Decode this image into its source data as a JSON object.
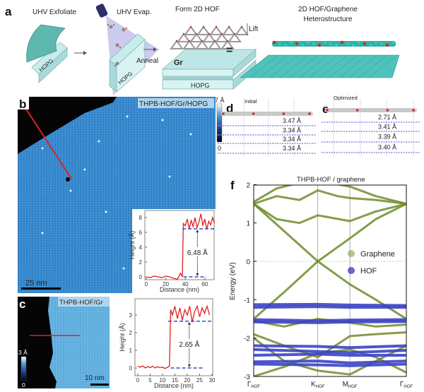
{
  "panel_a": {
    "label": "a",
    "step1": "UHV Exfoliate",
    "step2": "UHV Evap.",
    "step3": "Form 2D HOF",
    "step4_line1": "2D HOF/Graphene",
    "step4_line2": "Heterostructure",
    "anneal": "Anneal",
    "lift": "Lift",
    "gr": "Gr",
    "hopg": "HOPG",
    "equals": "="
  },
  "panel_b": {
    "label": "b",
    "title": "THPB-HOF/Gr/HOPG",
    "colorbar_max": "7 Å",
    "colorbar_min": "0",
    "scale_bar": "25 nm"
  },
  "panel_c": {
    "label": "c",
    "title": "THPB-HOF/Gr",
    "colorbar_max": "3 Å",
    "colorbar_min": "0",
    "scale_bar": "10 nm"
  },
  "panel_d": {
    "label": "d",
    "title": "Initial",
    "spacings": [
      "3.47 Å",
      "3.34 Å",
      "3.34 Å",
      "3.34 Å"
    ]
  },
  "panel_e": {
    "label": "e",
    "title": "Optimized",
    "spacings": [
      "2.71 Å",
      "3.41 Å",
      "3.39 Å",
      "3.40 Å"
    ]
  },
  "panel_f": {
    "label": "f"
  },
  "colors": {
    "graphene": "#6e8c2a",
    "hof": "#3b44c4",
    "profile": "#e02020",
    "level": "#3a4fc0",
    "stm_blue": "#3a8fd0"
  },
  "chart_data": [
    {
      "type": "line",
      "panel": "b-inset",
      "xlabel": "Distance (nm)",
      "ylabel": "Height (Å)",
      "xlim": [
        0,
        70
      ],
      "ylim": [
        -0.5,
        9
      ],
      "xticks": [
        0,
        20,
        40,
        60
      ],
      "yticks": [
        0,
        2,
        4,
        6,
        8
      ],
      "annotation": "6.48 Å",
      "levels": [
        0,
        6.48
      ],
      "points": [
        [
          0,
          0
        ],
        [
          4,
          -0.1
        ],
        [
          8,
          0.1
        ],
        [
          12,
          0
        ],
        [
          16,
          -0.1
        ],
        [
          20,
          0.1
        ],
        [
          24,
          0
        ],
        [
          28,
          -0.2
        ],
        [
          32,
          -0.3
        ],
        [
          35,
          0.5
        ],
        [
          37,
          0
        ],
        [
          38,
          7.2
        ],
        [
          40,
          6.9
        ],
        [
          42,
          7.8
        ],
        [
          44,
          6.5
        ],
        [
          46,
          7.6
        ],
        [
          48,
          6.8
        ],
        [
          50,
          8.0
        ],
        [
          52,
          6.6
        ],
        [
          54,
          7.4
        ],
        [
          56,
          8.5
        ],
        [
          58,
          6.9
        ],
        [
          60,
          7.8
        ],
        [
          62,
          6.4
        ],
        [
          64,
          7.5
        ],
        [
          66,
          7.0
        ],
        [
          68,
          8.0
        ],
        [
          70,
          7.2
        ]
      ]
    },
    {
      "type": "line",
      "panel": "c-profile",
      "xlabel": "Distance (nm)",
      "ylabel": "Height (Å)",
      "xlim": [
        0,
        30
      ],
      "ylim": [
        -0.4,
        3.9
      ],
      "xticks": [
        0,
        5,
        10,
        15,
        20,
        25,
        30
      ],
      "yticks": [
        0,
        1,
        2,
        3
      ],
      "annotation": "2.65 Å",
      "levels": [
        0,
        2.65
      ],
      "points": [
        [
          0,
          0.1
        ],
        [
          1,
          0.05
        ],
        [
          2,
          0.12
        ],
        [
          3,
          0
        ],
        [
          4,
          0.08
        ],
        [
          5,
          0.02
        ],
        [
          6,
          0.1
        ],
        [
          7,
          0
        ],
        [
          8,
          0.07
        ],
        [
          9,
          0.02
        ],
        [
          10,
          0.05
        ],
        [
          11,
          -0.03
        ],
        [
          12,
          0.04
        ],
        [
          12.8,
          0.1
        ],
        [
          13.3,
          3.3
        ],
        [
          14,
          3.0
        ],
        [
          15,
          3.5
        ],
        [
          16,
          2.8
        ],
        [
          17,
          3.4
        ],
        [
          18,
          2.7
        ],
        [
          19,
          3.3
        ],
        [
          20,
          3.0
        ],
        [
          21,
          3.5
        ],
        [
          22,
          2.6
        ],
        [
          23,
          3.2
        ],
        [
          24,
          3.5
        ],
        [
          25,
          2.9
        ],
        [
          26,
          3.4
        ],
        [
          27,
          3.1
        ],
        [
          28,
          3.5
        ],
        [
          29,
          3.0
        ]
      ]
    },
    {
      "type": "line",
      "panel": "f",
      "title": "THPB-HOF / graphene",
      "ylabel": "Energy (eV)",
      "ylim": [
        -3,
        2
      ],
      "yticks": [
        2,
        1,
        0,
        -1,
        -2,
        -3
      ],
      "fermi_level": 0,
      "kpoints": [
        {
          "name": "Γ",
          "sub": "HOF",
          "k": 0
        },
        {
          "name": "K",
          "sub": "HOF",
          "k": 0.42
        },
        {
          "name": "M",
          "sub": "HOF",
          "k": 0.63
        },
        {
          "name": "Γ",
          "sub": "HOF",
          "k": 1
        }
      ],
      "series": [
        {
          "name": "Graphene",
          "bands": [
            [
              [
                0,
                1.5
              ],
              [
                0.42,
                0
              ],
              [
                0.63,
                0.6
              ],
              [
                0.8,
                1.1
              ],
              [
                1,
                1.5
              ]
            ],
            [
              [
                0,
                -1.5
              ],
              [
                0.2,
                -0.8
              ],
              [
                0.42,
                0
              ],
              [
                0.63,
                -0.6
              ],
              [
                0.8,
                -1.0
              ],
              [
                1,
                -1.5
              ]
            ],
            [
              [
                0,
                1.5
              ],
              [
                0.15,
                1.1
              ],
              [
                0.3,
                1.0
              ],
              [
                0.42,
                1.2
              ],
              [
                0.63,
                1.05
              ],
              [
                0.8,
                1.3
              ],
              [
                1,
                1.5
              ]
            ],
            [
              [
                0,
                1.5
              ],
              [
                0.15,
                1.7
              ],
              [
                0.3,
                1.6
              ],
              [
                0.42,
                1.85
              ],
              [
                0.55,
                1.7
              ],
              [
                0.63,
                1.65
              ],
              [
                0.8,
                1.6
              ],
              [
                1,
                1.5
              ]
            ],
            [
              [
                0,
                1.55
              ],
              [
                0.15,
                1.9
              ],
              [
                0.3,
                2.05
              ],
              [
                0.42,
                2.1
              ],
              [
                0.63,
                1.95
              ],
              [
                0.8,
                1.7
              ],
              [
                1,
                1.5
              ]
            ],
            [
              [
                0,
                -1.9
              ],
              [
                0.2,
                -2.2
              ],
              [
                0.42,
                -2.5
              ],
              [
                0.63,
                -1.95
              ],
              [
                0.8,
                -1.9
              ],
              [
                1,
                -1.85
              ]
            ],
            [
              [
                0,
                -2.0
              ],
              [
                0.2,
                -2.6
              ],
              [
                0.42,
                -2.85
              ],
              [
                0.63,
                -2.95
              ],
              [
                0.8,
                -2.6
              ],
              [
                1,
                -2.2
              ]
            ],
            [
              [
                0,
                -3.0
              ],
              [
                0.2,
                -2.75
              ],
              [
                0.42,
                -2.4
              ],
              [
                0.63,
                -2.3
              ],
              [
                0.8,
                -2.5
              ],
              [
                1,
                -2.9
              ]
            ],
            [
              [
                0,
                -1.55
              ],
              [
                0.2,
                -1.7
              ],
              [
                0.42,
                -1.5
              ],
              [
                0.63,
                -1.6
              ],
              [
                0.8,
                -1.7
              ],
              [
                1,
                -1.65
              ]
            ]
          ]
        },
        {
          "name": "HOF",
          "bands": [
            [
              [
                0,
                -1.13
              ],
              [
                0.42,
                -1.12
              ],
              [
                0.63,
                -1.14
              ],
              [
                1,
                -1.15
              ]
            ],
            [
              [
                0,
                -1.2
              ],
              [
                0.42,
                -1.18
              ],
              [
                0.63,
                -1.2
              ],
              [
                1,
                -1.2
              ]
            ],
            [
              [
                0,
                -1.52
              ],
              [
                0.42,
                -1.55
              ],
              [
                0.63,
                -1.53
              ],
              [
                1,
                -1.52
              ]
            ],
            [
              [
                0,
                -1.58
              ],
              [
                0.42,
                -1.6
              ],
              [
                0.63,
                -1.58
              ],
              [
                1,
                -1.57
              ]
            ],
            [
              [
                0,
                -2.2
              ],
              [
                0.42,
                -2.22
              ],
              [
                0.63,
                -2.25
              ],
              [
                1,
                -2.2
              ]
            ],
            [
              [
                0,
                -2.3
              ],
              [
                0.42,
                -2.35
              ],
              [
                0.63,
                -2.38
              ],
              [
                1,
                -2.32
              ]
            ],
            [
              [
                0,
                -2.45
              ],
              [
                0.42,
                -2.42
              ],
              [
                0.63,
                -2.45
              ],
              [
                1,
                -2.45
              ]
            ],
            [
              [
                0,
                -2.62
              ],
              [
                0.42,
                -2.6
              ],
              [
                0.63,
                -2.65
              ],
              [
                1,
                -2.6
              ]
            ],
            [
              [
                0,
                -2.68
              ],
              [
                0.42,
                -2.7
              ],
              [
                0.63,
                -2.72
              ],
              [
                1,
                -2.68
              ]
            ]
          ]
        }
      ],
      "legend": [
        "Graphene",
        "HOF"
      ],
      "legend_position": "center-right"
    }
  ]
}
